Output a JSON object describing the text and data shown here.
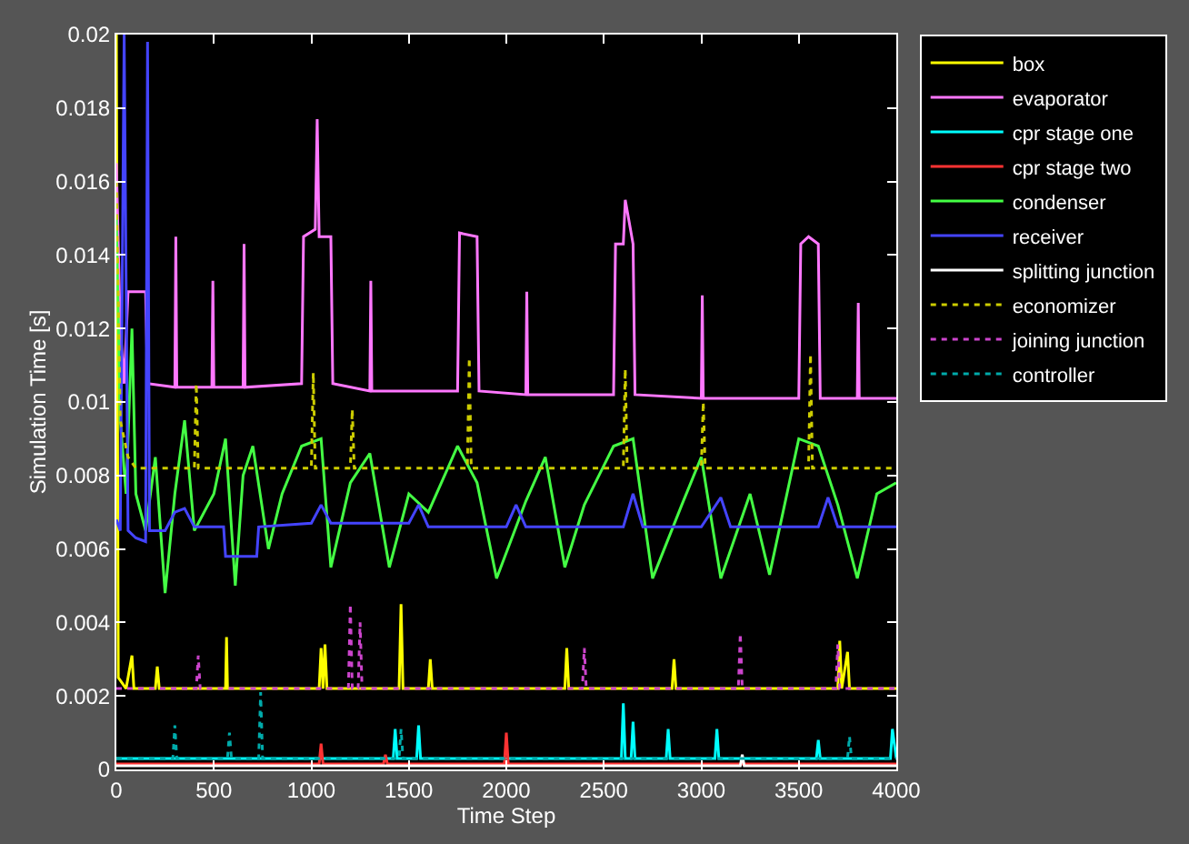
{
  "chart_data": {
    "type": "line",
    "xlabel": "Time Step",
    "ylabel": "Simulation Time [s]",
    "xlim": [
      0,
      4000
    ],
    "xticks": [
      0,
      500,
      1000,
      1500,
      2000,
      2500,
      3000,
      3500,
      4000
    ],
    "ylim": [
      0,
      0.02
    ],
    "yticks": [
      0,
      0.002,
      0.004,
      0.006,
      0.008,
      0.01,
      0.012,
      0.014,
      0.016,
      0.018,
      0.02
    ],
    "grid": false,
    "legend": "top right",
    "marker": "none",
    "series": [
      {
        "name": "box",
        "color": "#ffff00",
        "line_style": "solid",
        "x": [
          0,
          10,
          50,
          80,
          90,
          200,
          210,
          220,
          560,
          565,
          570,
          1040,
          1050,
          1060,
          1070,
          1080,
          1450,
          1460,
          1470,
          1600,
          1610,
          1620,
          2300,
          2310,
          2320,
          2850,
          2860,
          2870,
          3700,
          3710,
          3720,
          3750,
          3760,
          4000
        ],
        "values": [
          0.02,
          0.0025,
          0.0022,
          0.0031,
          0.0022,
          0.0022,
          0.0028,
          0.0022,
          0.0022,
          0.0036,
          0.0022,
          0.0022,
          0.0033,
          0.0022,
          0.0034,
          0.0022,
          0.0022,
          0.0045,
          0.0022,
          0.0022,
          0.003,
          0.0022,
          0.0022,
          0.0033,
          0.0022,
          0.0022,
          0.003,
          0.0022,
          0.0022,
          0.0035,
          0.0022,
          0.0032,
          0.0022,
          0.0022
        ]
      },
      {
        "name": "evaporator",
        "color": "#ff77ff",
        "line_style": "solid",
        "x": [
          0,
          20,
          40,
          60,
          150,
          160,
          300,
          305,
          310,
          490,
          495,
          500,
          650,
          655,
          660,
          950,
          960,
          1020,
          1030,
          1040,
          1100,
          1110,
          1300,
          1305,
          1310,
          1750,
          1760,
          1850,
          1860,
          2100,
          2105,
          2110,
          2550,
          2560,
          2600,
          2610,
          2650,
          2660,
          3000,
          3005,
          3010,
          3500,
          3510,
          3550,
          3600,
          3610,
          3800,
          3805,
          3810,
          4000
        ],
        "values": [
          0.0165,
          0.012,
          0.0105,
          0.013,
          0.013,
          0.0105,
          0.0104,
          0.0145,
          0.0104,
          0.0104,
          0.0133,
          0.0104,
          0.0104,
          0.0143,
          0.0104,
          0.0105,
          0.0145,
          0.0147,
          0.0177,
          0.0145,
          0.0145,
          0.0105,
          0.0103,
          0.0133,
          0.0103,
          0.0103,
          0.0146,
          0.0145,
          0.0103,
          0.0102,
          0.013,
          0.0102,
          0.0102,
          0.0143,
          0.0143,
          0.0155,
          0.0143,
          0.0102,
          0.0101,
          0.0129,
          0.0101,
          0.0101,
          0.0143,
          0.0145,
          0.0143,
          0.0101,
          0.0101,
          0.0127,
          0.0101,
          0.0101
        ]
      },
      {
        "name": "cpr stage one",
        "color": "#00ffff",
        "line_style": "solid",
        "x": [
          0,
          1420,
          1430,
          1440,
          1540,
          1550,
          1560,
          2590,
          2600,
          2610,
          2640,
          2650,
          2660,
          2820,
          2830,
          2840,
          3070,
          3080,
          3090,
          3590,
          3600,
          3610,
          3970,
          3980,
          4000
        ],
        "values": [
          0.0003,
          0.0003,
          0.0011,
          0.0003,
          0.0003,
          0.0012,
          0.0003,
          0.0003,
          0.0018,
          0.0003,
          0.0003,
          0.0013,
          0.0003,
          0.0003,
          0.0011,
          0.0003,
          0.0003,
          0.0011,
          0.0003,
          0.0003,
          0.0008,
          0.0003,
          0.0003,
          0.0011,
          0.0003
        ]
      },
      {
        "name": "cpr stage two",
        "color": "#ff3333",
        "line_style": "solid",
        "x": [
          0,
          1040,
          1050,
          1060,
          1370,
          1380,
          1390,
          1990,
          2000,
          2010,
          4000
        ],
        "values": [
          0.00015,
          0.00015,
          0.0007,
          0.00015,
          0.00015,
          0.0004,
          0.00015,
          0.00015,
          0.001,
          0.00015,
          0.00015
        ]
      },
      {
        "name": "condenser",
        "color": "#44ff44",
        "line_style": "solid",
        "x": [
          0,
          20,
          50,
          80,
          100,
          150,
          200,
          250,
          300,
          350,
          400,
          500,
          560,
          610,
          650,
          700,
          780,
          850,
          950,
          1050,
          1100,
          1200,
          1300,
          1400,
          1500,
          1600,
          1750,
          1850,
          1950,
          2100,
          2200,
          2300,
          2400,
          2550,
          2650,
          2750,
          2900,
          3000,
          3100,
          3250,
          3350,
          3500,
          3600,
          3700,
          3800,
          3900,
          4000
        ],
        "values": [
          0.015,
          0.0095,
          0.0075,
          0.012,
          0.0075,
          0.0065,
          0.0085,
          0.0048,
          0.0075,
          0.0095,
          0.0065,
          0.0075,
          0.009,
          0.005,
          0.008,
          0.0088,
          0.006,
          0.0075,
          0.0088,
          0.009,
          0.0055,
          0.0078,
          0.0086,
          0.0055,
          0.0075,
          0.007,
          0.0088,
          0.0078,
          0.0052,
          0.0073,
          0.0085,
          0.0055,
          0.0072,
          0.0088,
          0.009,
          0.0052,
          0.0072,
          0.0085,
          0.0052,
          0.0075,
          0.0053,
          0.009,
          0.0088,
          0.0072,
          0.0052,
          0.0075,
          0.0078
        ]
      },
      {
        "name": "receiver",
        "color": "#4444ff",
        "line_style": "solid",
        "x": [
          0,
          20,
          40,
          60,
          100,
          150,
          160,
          170,
          250,
          300,
          350,
          400,
          550,
          560,
          720,
          730,
          1000,
          1050,
          1100,
          1500,
          1550,
          1600,
          2000,
          2050,
          2100,
          2600,
          2650,
          2700,
          3000,
          3100,
          3150,
          3600,
          3650,
          3700,
          4000
        ],
        "values": [
          0.0068,
          0.0065,
          0.02,
          0.0065,
          0.0063,
          0.0062,
          0.0198,
          0.0065,
          0.0065,
          0.007,
          0.0071,
          0.0066,
          0.0066,
          0.0058,
          0.0058,
          0.0066,
          0.0067,
          0.0072,
          0.0067,
          0.0067,
          0.0072,
          0.0066,
          0.0066,
          0.0072,
          0.0066,
          0.0066,
          0.0075,
          0.0066,
          0.0066,
          0.0074,
          0.0066,
          0.0066,
          0.0074,
          0.0066,
          0.0066
        ]
      },
      {
        "name": "splitting junction",
        "color": "#ffffff",
        "line_style": "solid",
        "x": [
          0,
          3200,
          3210,
          3220,
          4000
        ],
        "values": [
          0.0001,
          0.0001,
          0.0004,
          0.0001,
          0.0001
        ]
      },
      {
        "name": "economizer",
        "color": "#cccc00",
        "line_style": "dotted",
        "x": [
          0,
          20,
          60,
          100,
          400,
          410,
          420,
          1000,
          1010,
          1020,
          1200,
          1210,
          1220,
          1800,
          1810,
          1820,
          2600,
          2610,
          2620,
          3000,
          3010,
          3020,
          3550,
          3560,
          3570,
          4000
        ],
        "values": [
          0.016,
          0.0095,
          0.0085,
          0.0082,
          0.0082,
          0.0105,
          0.0082,
          0.0082,
          0.0108,
          0.0082,
          0.0082,
          0.0098,
          0.0082,
          0.0082,
          0.0112,
          0.0082,
          0.0082,
          0.0109,
          0.0082,
          0.0082,
          0.01,
          0.0082,
          0.0082,
          0.0113,
          0.0082,
          0.0082
        ]
      },
      {
        "name": "joining junction",
        "color": "#cc44cc",
        "line_style": "dotted",
        "x": [
          0,
          410,
          420,
          430,
          1190,
          1200,
          1210,
          1240,
          1250,
          1260,
          2390,
          2400,
          2410,
          3190,
          3200,
          3210,
          3690,
          3700,
          3710,
          4000
        ],
        "values": [
          0.0022,
          0.0022,
          0.0031,
          0.0022,
          0.0022,
          0.0045,
          0.0022,
          0.0022,
          0.004,
          0.0022,
          0.0022,
          0.0033,
          0.0022,
          0.0022,
          0.0037,
          0.0022,
          0.0022,
          0.0034,
          0.0022,
          0.0022
        ]
      },
      {
        "name": "controller",
        "color": "#00aaaa",
        "line_style": "dotted",
        "x": [
          0,
          290,
          300,
          310,
          570,
          580,
          590,
          730,
          740,
          750,
          1450,
          1460,
          1470,
          3750,
          3760,
          3770,
          4000
        ],
        "values": [
          0.0003,
          0.0003,
          0.0012,
          0.0003,
          0.0003,
          0.001,
          0.0003,
          0.0003,
          0.0021,
          0.0003,
          0.0003,
          0.0011,
          0.0003,
          0.0003,
          0.0009,
          0.0003,
          0.0003
        ]
      }
    ]
  }
}
